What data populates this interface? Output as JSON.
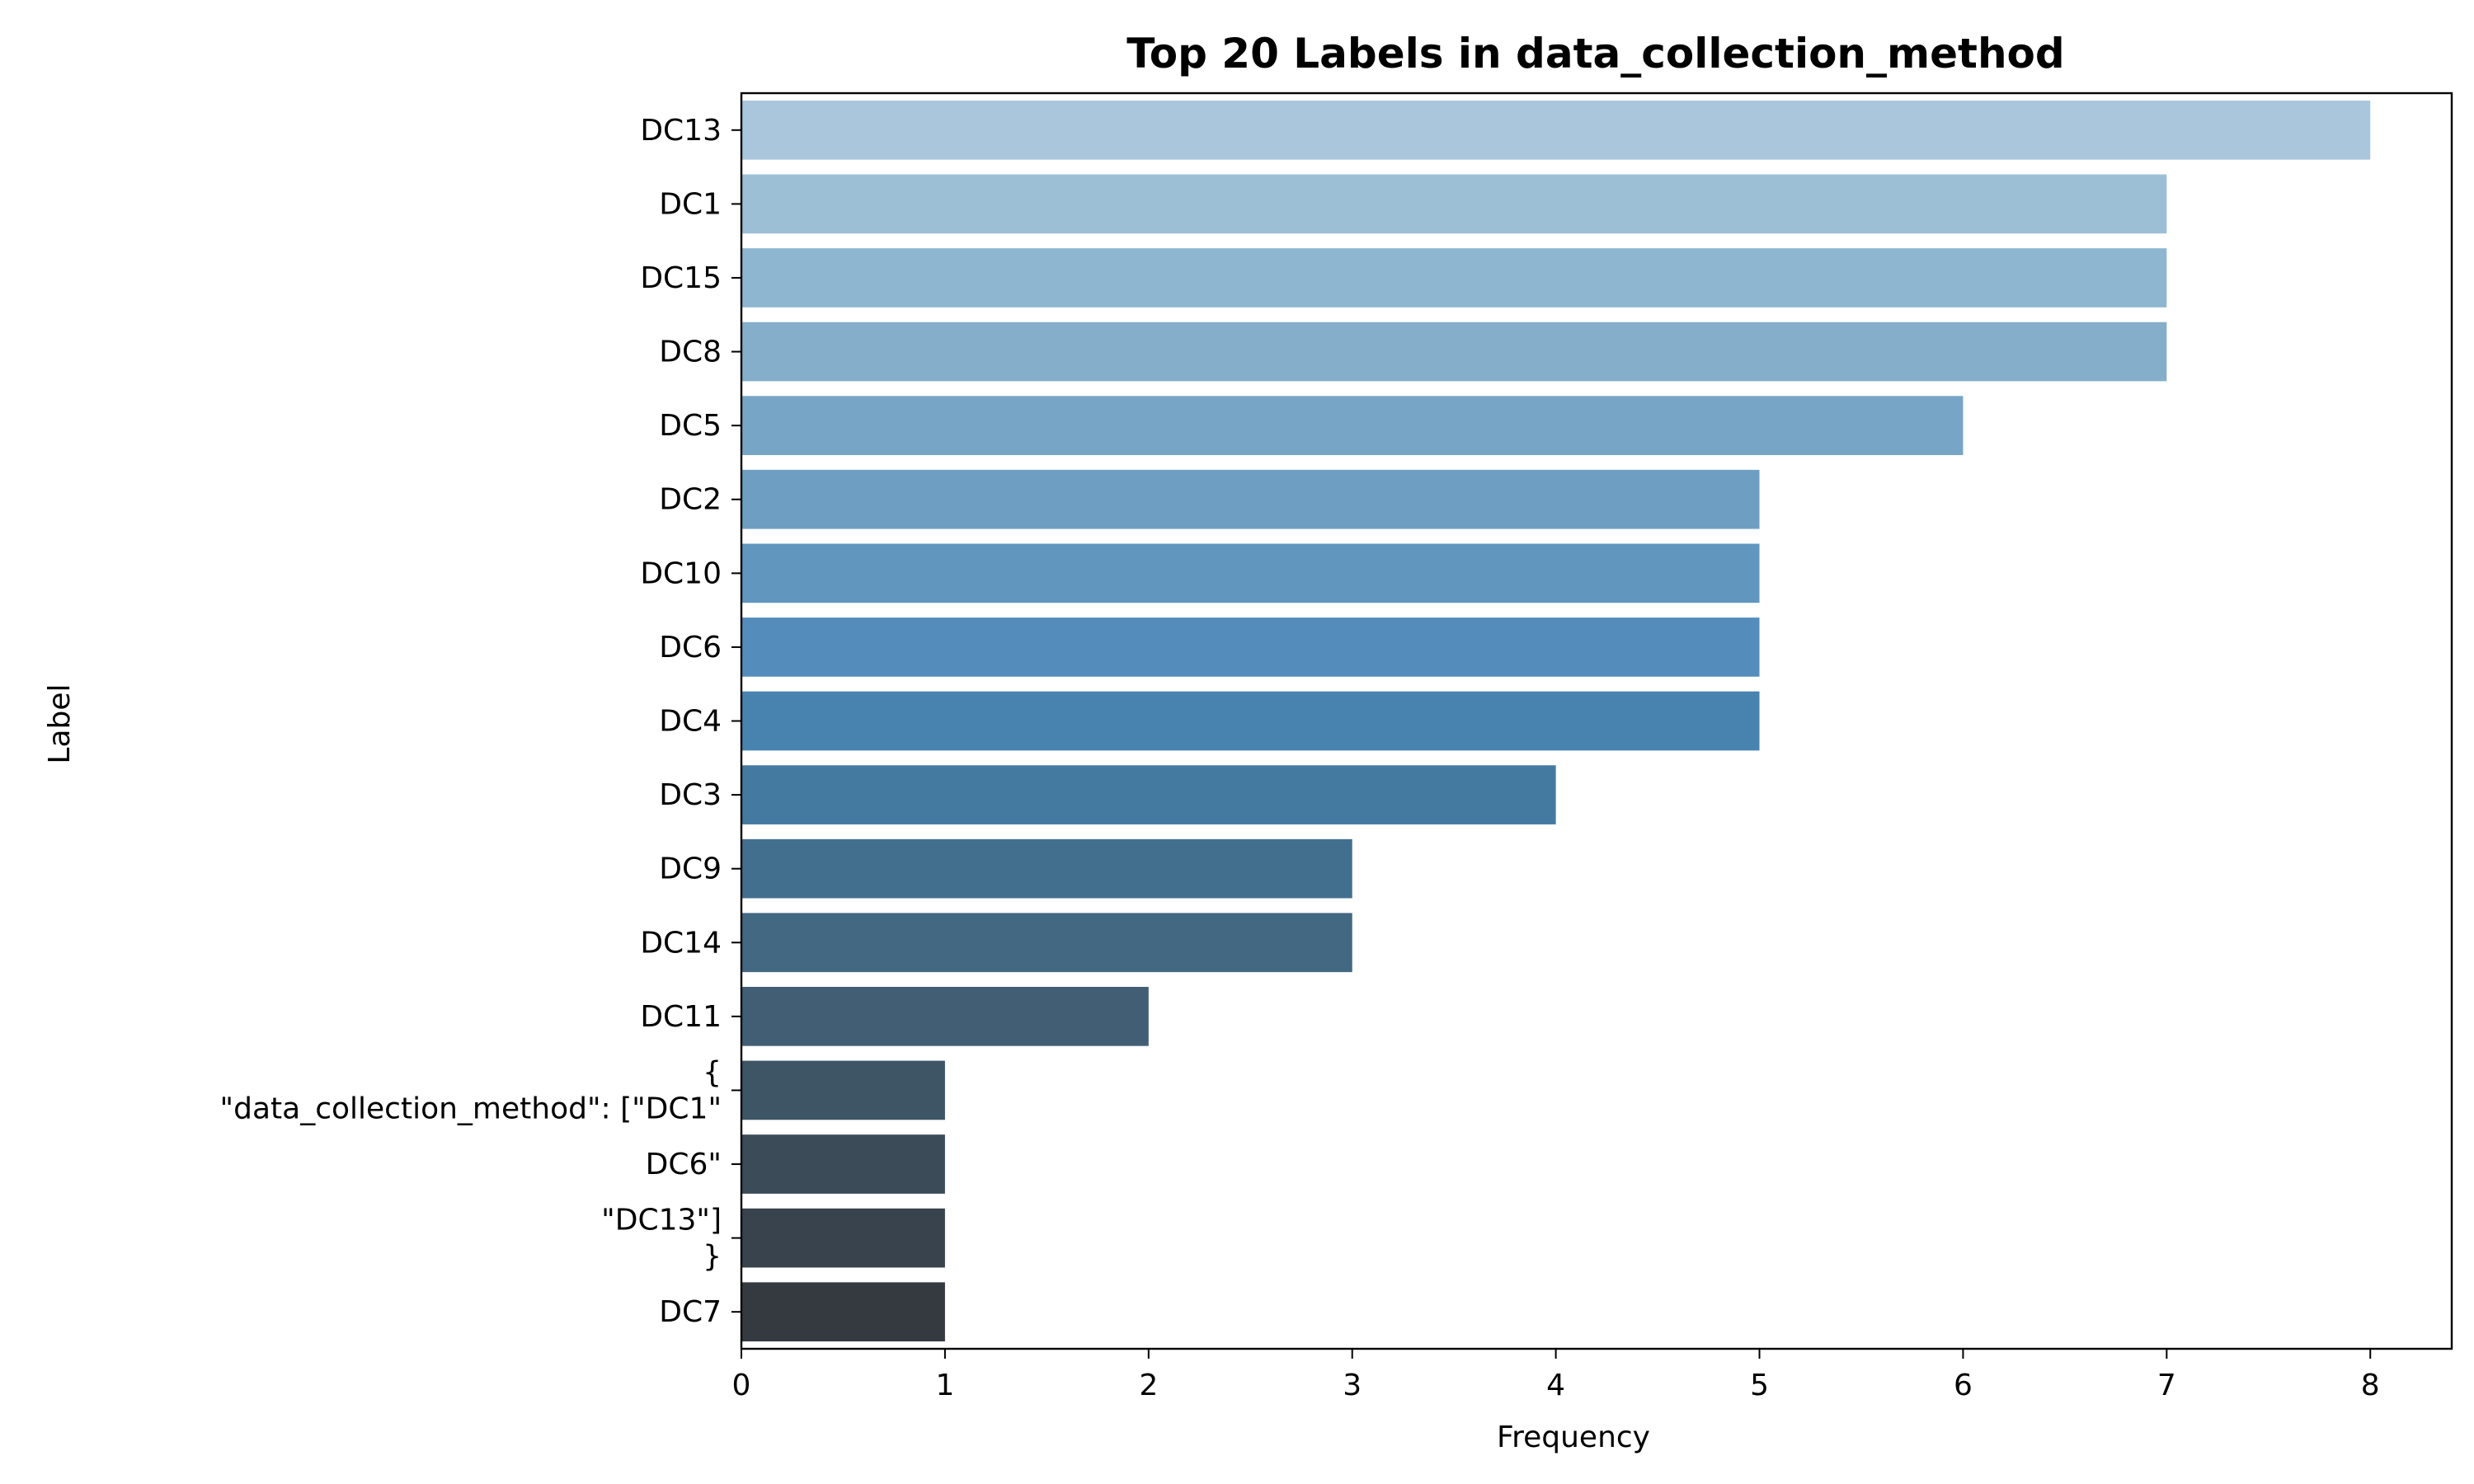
{
  "chart_data": {
    "type": "bar",
    "orientation": "horizontal",
    "title": "Top 20 Labels in data_collection_method",
    "xlabel": "Frequency",
    "ylabel": "Label",
    "categories": [
      "DC13",
      "DC1",
      "DC15",
      "DC8",
      "DC5",
      "DC2",
      "DC10",
      "DC6",
      "DC4",
      "DC3",
      "DC9",
      "DC14",
      "DC11",
      "{\n\"data_collection_method\": [\"DC1\"",
      "DC6\"",
      "\"DC13\"]\n}",
      "DC7"
    ],
    "values": [
      8,
      7,
      7,
      7,
      6,
      5,
      5,
      5,
      5,
      4,
      3,
      3,
      2,
      1,
      1,
      1,
      1
    ],
    "colors": [
      "#a9c6dc",
      "#9cbfd6",
      "#8fb6d0",
      "#85aeca",
      "#77a5c6",
      "#6e9fc3",
      "#6197be",
      "#548dbb",
      "#4883b0",
      "#447aa0",
      "#436f8f",
      "#426882",
      "#415e75",
      "#3e5566",
      "#3b4b58",
      "#39434d",
      "#353940"
    ],
    "xlim": [
      0,
      8.4
    ],
    "xticks": [
      "0",
      "1",
      "2",
      "3",
      "4",
      "5",
      "6",
      "7",
      "8"
    ],
    "grid": false,
    "legend": "none"
  }
}
